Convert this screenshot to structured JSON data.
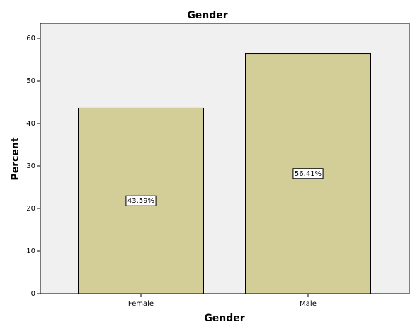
{
  "chart_data": {
    "type": "bar",
    "title": "Gender",
    "x_label": "Gender",
    "y_label": "Percent",
    "categories": [
      "Female",
      "Male"
    ],
    "values": [
      43.59,
      56.41
    ],
    "value_labels": [
      "43.59%",
      "56.41%"
    ],
    "color": "#d3ce97",
    "ylim": [
      0,
      63.5
    ],
    "yticks": [
      0,
      10,
      20,
      30,
      40,
      50,
      60
    ]
  }
}
